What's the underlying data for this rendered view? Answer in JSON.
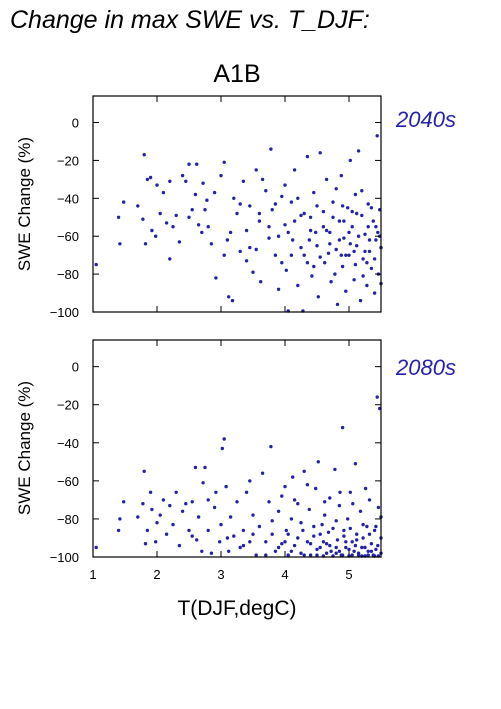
{
  "figure": {
    "title": "Change in max SWE vs. T_DJF:",
    "scenario": "A1B",
    "xlabel": "T(DJF,degC)",
    "point_color": "#2323a8",
    "period_color": "#2323a8"
  },
  "chart_data": [
    {
      "type": "scatter",
      "period_label": "2040s",
      "ylabel": "SWE Change (%)",
      "xlim": [
        1.0,
        5.5
      ],
      "ylim": [
        -100,
        14
      ],
      "xticks": [
        1,
        2,
        3,
        4,
        5
      ],
      "yticks": [
        0,
        -20,
        -40,
        -60,
        -80,
        -100
      ],
      "x_tick_labels_shown": false,
      "series_density": "about 330 points, denser between 4 and 5.5 degC",
      "points": [
        [
          1.05,
          -75
        ],
        [
          1.4,
          -50
        ],
        [
          1.42,
          -64
        ],
        [
          1.48,
          -42
        ],
        [
          1.7,
          -44
        ],
        [
          1.78,
          -51
        ],
        [
          1.8,
          -17
        ],
        [
          1.82,
          -64
        ],
        [
          1.85,
          -30
        ],
        [
          1.9,
          -29
        ],
        [
          1.92,
          -57
        ],
        [
          1.98,
          -60
        ],
        [
          2.0,
          -33
        ],
        [
          2.05,
          -48
        ],
        [
          2.1,
          -37
        ],
        [
          2.15,
          -53
        ],
        [
          2.2,
          -31
        ],
        [
          2.25,
          -55
        ],
        [
          2.3,
          -49
        ],
        [
          2.35,
          -63
        ],
        [
          2.4,
          -28
        ],
        [
          2.45,
          -31
        ],
        [
          2.5,
          -22
        ],
        [
          2.55,
          -46
        ],
        [
          2.6,
          -38
        ],
        [
          2.62,
          -22
        ],
        [
          2.65,
          -54
        ],
        [
          2.7,
          -58
        ],
        [
          2.72,
          -32
        ],
        [
          2.78,
          -41
        ],
        [
          2.8,
          -55
        ],
        [
          2.85,
          -64
        ],
        [
          2.9,
          -37
        ],
        [
          2.92,
          -82
        ],
        [
          3.0,
          -28
        ],
        [
          3.05,
          -21
        ],
        [
          3.1,
          -62
        ],
        [
          3.12,
          -92
        ],
        [
          3.18,
          -94
        ],
        [
          3.2,
          -40
        ],
        [
          3.25,
          -48
        ],
        [
          3.3,
          -68
        ],
        [
          3.35,
          -31
        ],
        [
          3.4,
          -57
        ],
        [
          3.45,
          -44
        ],
        [
          3.5,
          -79
        ],
        [
          3.55,
          -25
        ],
        [
          3.6,
          -52
        ],
        [
          3.62,
          -84
        ],
        [
          3.7,
          -36
        ],
        [
          3.75,
          -61
        ],
        [
          3.78,
          -14
        ],
        [
          3.8,
          -46
        ],
        [
          3.85,
          -70
        ],
        [
          3.9,
          -88
        ],
        [
          3.95,
          -39
        ],
        [
          4.0,
          -54
        ],
        [
          4.02,
          -78
        ],
        [
          4.05,
          -100
        ],
        [
          4.1,
          -42
        ],
        [
          4.12,
          -62
        ],
        [
          4.15,
          -25
        ],
        [
          4.2,
          -86
        ],
        [
          4.25,
          -49
        ],
        [
          4.28,
          -100
        ],
        [
          4.3,
          -70
        ],
        [
          4.35,
          -18
        ],
        [
          4.4,
          -57
        ],
        [
          4.42,
          -81
        ],
        [
          4.45,
          -37
        ],
        [
          4.5,
          -65
        ],
        [
          4.52,
          -92
        ],
        [
          4.55,
          -16
        ],
        [
          4.6,
          -47
        ],
        [
          4.62,
          -74
        ],
        [
          4.65,
          -30
        ],
        [
          4.7,
          -58
        ],
        [
          4.72,
          -84
        ],
        [
          4.75,
          -42
        ],
        [
          4.8,
          -67
        ],
        [
          4.82,
          -96
        ],
        [
          4.85,
          -52
        ],
        [
          4.88,
          -28
        ],
        [
          4.9,
          -76
        ],
        [
          4.92,
          -61
        ],
        [
          4.95,
          -89
        ],
        [
          4.98,
          -45
        ],
        [
          5.0,
          -70
        ],
        [
          5.02,
          -20
        ],
        [
          5.05,
          -55
        ],
        [
          5.08,
          -83
        ],
        [
          5.1,
          -38
        ],
        [
          5.12,
          -65
        ],
        [
          5.15,
          -15
        ],
        [
          5.18,
          -94
        ],
        [
          5.2,
          -49
        ],
        [
          5.22,
          -72
        ],
        [
          5.25,
          -59
        ],
        [
          5.28,
          -86
        ],
        [
          5.3,
          -43
        ],
        [
          5.32,
          -68
        ],
        [
          5.35,
          -77
        ],
        [
          5.38,
          -52
        ],
        [
          5.4,
          -90
        ],
        [
          5.42,
          -62
        ],
        [
          5.44,
          -7
        ],
        [
          5.46,
          -80
        ],
        [
          5.48,
          -46
        ],
        [
          5.5,
          -85
        ],
        [
          2.2,
          -72
        ],
        [
          2.5,
          -50
        ],
        [
          2.75,
          -46
        ],
        [
          3.05,
          -70
        ],
        [
          3.3,
          -43
        ],
        [
          3.45,
          -66
        ],
        [
          3.65,
          -30
        ],
        [
          3.75,
          -55
        ],
        [
          3.9,
          -60
        ],
        [
          4.0,
          -33
        ],
        [
          4.1,
          -70
        ],
        [
          4.2,
          -40
        ],
        [
          4.3,
          -48
        ],
        [
          4.38,
          -62
        ],
        [
          4.45,
          -76
        ],
        [
          4.5,
          -44
        ],
        [
          4.6,
          -55
        ],
        [
          4.68,
          -69
        ],
        [
          4.75,
          -50
        ],
        [
          4.8,
          -35
        ],
        [
          4.85,
          -62
        ],
        [
          4.9,
          -44
        ],
        [
          4.95,
          -70
        ],
        [
          5.0,
          -58
        ],
        [
          5.05,
          -47
        ],
        [
          5.1,
          -75
        ],
        [
          5.15,
          -60
        ],
        [
          5.2,
          -36
        ],
        [
          5.25,
          -68
        ],
        [
          5.3,
          -55
        ],
        [
          5.35,
          -45
        ],
        [
          5.4,
          -72
        ],
        [
          5.45,
          -58
        ],
        [
          5.5,
          -66
        ],
        [
          3.55,
          -67
        ],
        [
          3.85,
          -43
        ],
        [
          4.05,
          -58
        ],
        [
          4.25,
          -66
        ],
        [
          4.4,
          -50
        ],
        [
          4.55,
          -71
        ],
        [
          4.65,
          -57
        ],
        [
          4.78,
          -80
        ],
        [
          4.92,
          -52
        ],
        [
          5.02,
          -64
        ],
        [
          5.12,
          -48
        ],
        [
          5.22,
          -81
        ],
        [
          5.32,
          -62
        ],
        [
          5.42,
          -55
        ],
        [
          3.15,
          -58
        ],
        [
          3.4,
          -73
        ],
        [
          3.6,
          -48
        ],
        [
          3.95,
          -74
        ],
        [
          4.15,
          -52
        ],
        [
          4.35,
          -74
        ],
        [
          4.48,
          -58
        ],
        [
          4.7,
          -64
        ],
        [
          4.88,
          -70
        ],
        [
          5.08,
          -68
        ],
        [
          5.28,
          -74
        ],
        [
          5.48,
          -60
        ]
      ]
    },
    {
      "type": "scatter",
      "period_label": "2080s",
      "ylabel": "SWE Change (%)",
      "xlim": [
        1.0,
        5.5
      ],
      "ylim": [
        -100,
        14
      ],
      "xticks": [
        1,
        2,
        3,
        4,
        5
      ],
      "yticks": [
        0,
        -20,
        -40,
        -60,
        -80,
        -100
      ],
      "x_tick_labels_shown": true,
      "series_density": "about 330 points, heavily clustered near -100 at higher temperatures",
      "points": [
        [
          1.05,
          -95
        ],
        [
          1.4,
          -86
        ],
        [
          1.42,
          -80
        ],
        [
          1.48,
          -71
        ],
        [
          1.7,
          -79
        ],
        [
          1.78,
          -72
        ],
        [
          1.8,
          -55
        ],
        [
          1.82,
          -93
        ],
        [
          1.85,
          -86
        ],
        [
          1.9,
          -66
        ],
        [
          1.92,
          -75
        ],
        [
          1.98,
          -92
        ],
        [
          2.0,
          -82
        ],
        [
          2.05,
          -78
        ],
        [
          2.1,
          -70
        ],
        [
          2.15,
          -88
        ],
        [
          2.2,
          -73
        ],
        [
          2.25,
          -83
        ],
        [
          2.3,
          -66
        ],
        [
          2.35,
          -94
        ],
        [
          2.4,
          -76
        ],
        [
          2.45,
          -72
        ],
        [
          2.5,
          -86
        ],
        [
          2.55,
          -71
        ],
        [
          2.6,
          -53
        ],
        [
          2.62,
          -91
        ],
        [
          2.65,
          -79
        ],
        [
          2.7,
          -97
        ],
        [
          2.72,
          -61
        ],
        [
          2.75,
          -53
        ],
        [
          2.8,
          -86
        ],
        [
          2.85,
          -98
        ],
        [
          2.9,
          -74
        ],
        [
          2.92,
          -66
        ],
        [
          2.98,
          -92
        ],
        [
          3.0,
          -83
        ],
        [
          3.02,
          -43
        ],
        [
          3.05,
          -38
        ],
        [
          3.08,
          -63
        ],
        [
          3.12,
          -97
        ],
        [
          3.15,
          -79
        ],
        [
          3.2,
          -89
        ],
        [
          3.25,
          -71
        ],
        [
          3.3,
          -95
        ],
        [
          3.35,
          -86
        ],
        [
          3.4,
          -66
        ],
        [
          3.45,
          -92
        ],
        [
          3.5,
          -78
        ],
        [
          3.55,
          -99
        ],
        [
          3.6,
          -84
        ],
        [
          3.65,
          -56
        ],
        [
          3.7,
          -92
        ],
        [
          3.75,
          -71
        ],
        [
          3.78,
          -42
        ],
        [
          3.8,
          -88
        ],
        [
          3.85,
          -97
        ],
        [
          3.9,
          -76
        ],
        [
          3.95,
          -93
        ],
        [
          4.0,
          -63
        ],
        [
          4.02,
          -86
        ],
        [
          4.05,
          -99
        ],
        [
          4.1,
          -80
        ],
        [
          4.12,
          -58
        ],
        [
          4.15,
          -94
        ],
        [
          4.2,
          -72
        ],
        [
          4.25,
          -98
        ],
        [
          4.28,
          -86
        ],
        [
          4.3,
          -55
        ],
        [
          4.35,
          -92
        ],
        [
          4.38,
          -75
        ],
        [
          4.4,
          -99
        ],
        [
          4.45,
          -84
        ],
        [
          4.48,
          -64
        ],
        [
          4.5,
          -96
        ],
        [
          4.52,
          -50
        ],
        [
          4.55,
          -88
        ],
        [
          4.6,
          -100
        ],
        [
          4.62,
          -78
        ],
        [
          4.65,
          -93
        ],
        [
          4.7,
          -69
        ],
        [
          4.72,
          -97
        ],
        [
          4.75,
          -85
        ],
        [
          4.78,
          -54
        ],
        [
          4.8,
          -98
        ],
        [
          4.82,
          -91
        ],
        [
          4.85,
          -73
        ],
        [
          4.88,
          -99
        ],
        [
          4.9,
          -32
        ],
        [
          4.92,
          -86
        ],
        [
          4.95,
          -95
        ],
        [
          4.98,
          -80
        ],
        [
          5.0,
          -100
        ],
        [
          5.02,
          -66
        ],
        [
          5.05,
          -92
        ],
        [
          5.08,
          -97
        ],
        [
          5.1,
          -51
        ],
        [
          5.12,
          -88
        ],
        [
          5.15,
          -99
        ],
        [
          5.18,
          -76
        ],
        [
          5.2,
          -95
        ],
        [
          5.22,
          -90
        ],
        [
          5.25,
          -100
        ],
        [
          5.28,
          -84
        ],
        [
          5.3,
          -97
        ],
        [
          5.32,
          -70
        ],
        [
          5.35,
          -93
        ],
        [
          5.38,
          -99
        ],
        [
          5.4,
          -86
        ],
        [
          5.42,
          -96
        ],
        [
          5.44,
          -16
        ],
        [
          5.46,
          -100
        ],
        [
          5.48,
          -22
        ],
        [
          5.5,
          -79
        ],
        [
          2.55,
          -89
        ],
        [
          2.8,
          -70
        ],
        [
          3.1,
          -90
        ],
        [
          3.35,
          -94
        ],
        [
          3.5,
          -88
        ],
        [
          3.7,
          -99
        ],
        [
          3.9,
          -95
        ],
        [
          4.0,
          -92
        ],
        [
          4.1,
          -97
        ],
        [
          4.2,
          -90
        ],
        [
          4.3,
          -99
        ],
        [
          4.4,
          -93
        ],
        [
          4.5,
          -99
        ],
        [
          4.55,
          -95
        ],
        [
          4.6,
          -92
        ],
        [
          4.65,
          -98
        ],
        [
          4.7,
          -94
        ],
        [
          4.75,
          -100
        ],
        [
          4.8,
          -95
        ],
        [
          4.85,
          -97
        ],
        [
          4.9,
          -99
        ],
        [
          4.95,
          -92
        ],
        [
          5.0,
          -96
        ],
        [
          5.05,
          -99
        ],
        [
          5.1,
          -94
        ],
        [
          5.15,
          -98
        ],
        [
          5.2,
          -100
        ],
        [
          5.25,
          -95
        ],
        [
          5.3,
          -99
        ],
        [
          5.35,
          -97
        ],
        [
          5.4,
          -100
        ],
        [
          5.45,
          -94
        ],
        [
          5.5,
          -98
        ],
        [
          3.8,
          -81
        ],
        [
          4.05,
          -88
        ],
        [
          4.25,
          -82
        ],
        [
          4.45,
          -89
        ],
        [
          4.58,
          -83
        ],
        [
          4.68,
          -87
        ],
        [
          4.8,
          -81
        ],
        [
          4.92,
          -89
        ],
        [
          5.02,
          -85
        ],
        [
          5.12,
          -91
        ],
        [
          5.22,
          -83
        ],
        [
          5.32,
          -88
        ],
        [
          5.42,
          -84
        ],
        [
          5.5,
          -90
        ],
        [
          3.45,
          -60
        ],
        [
          3.95,
          -68
        ],
        [
          4.15,
          -70
        ],
        [
          4.35,
          -62
        ],
        [
          4.62,
          -71
        ],
        [
          4.86,
          -66
        ],
        [
          5.06,
          -72
        ],
        [
          5.26,
          -64
        ],
        [
          5.46,
          -74
        ]
      ]
    }
  ]
}
